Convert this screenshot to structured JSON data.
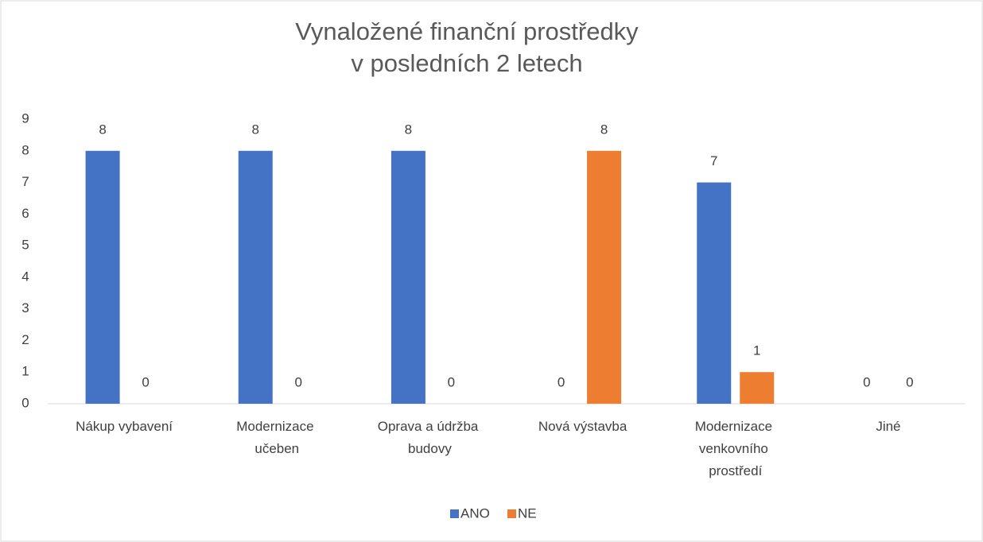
{
  "chart_data": {
    "type": "bar",
    "title": [
      "Vynaložené finanční prostředky",
      "v posledních 2 letech"
    ],
    "categories": [
      "Nákup vybavení",
      "Modernizace učeben",
      "Oprava a údržba budovy",
      "Nová výstavba",
      "Modernizace venkovního prostředí",
      "Jiné"
    ],
    "series": [
      {
        "name": "ANO",
        "color": "#4472c4",
        "values": [
          8,
          8,
          8,
          0,
          7,
          0
        ]
      },
      {
        "name": "NE",
        "color": "#ed7d31",
        "values": [
          0,
          0,
          0,
          8,
          1,
          0
        ]
      }
    ],
    "ylim": [
      0,
      9
    ],
    "yticks": [
      0,
      1,
      2,
      3,
      4,
      5,
      6,
      7,
      8,
      9
    ],
    "grid": false,
    "legend": "bottom"
  }
}
